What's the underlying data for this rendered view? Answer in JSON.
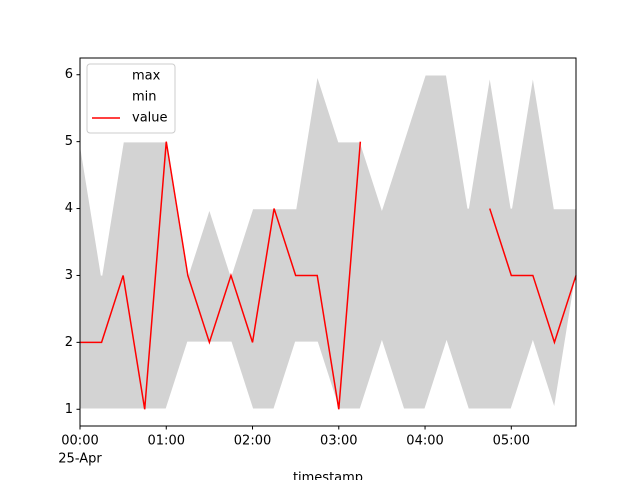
{
  "chart_data": {
    "type": "line_band",
    "x_label": "timestamp",
    "x_date_label": "25-Apr",
    "x": [
      "00:00",
      "00:15",
      "00:30",
      "00:45",
      "01:00",
      "01:15",
      "01:30",
      "01:45",
      "02:00",
      "02:15",
      "02:30",
      "02:45",
      "03:00",
      "03:15",
      "03:30",
      "03:45",
      "04:00",
      "04:15",
      "04:30",
      "04:45",
      "05:00",
      "05:15",
      "05:30",
      "05:45"
    ],
    "xlim": [
      "00:00",
      "05:45"
    ],
    "xticks": [
      "00:00",
      "01:00",
      "02:00",
      "03:00",
      "04:00",
      "05:00"
    ],
    "ylim": [
      0.75,
      6.25
    ],
    "yticks": [
      1,
      2,
      3,
      4,
      5,
      6
    ],
    "band_fill": "#d3d3d3",
    "legend": "upper left",
    "series": [
      {
        "name": "max",
        "color": "#ffffff",
        "values": [
          5,
          3,
          5,
          5,
          5,
          3,
          4,
          3,
          4,
          4,
          4,
          6,
          5,
          5,
          4,
          5,
          6,
          6,
          4,
          6,
          4,
          6,
          4,
          4
        ]
      },
      {
        "name": "min",
        "color": "#ffffff",
        "values": [
          1,
          1,
          1,
          1,
          1,
          2,
          2,
          2,
          1,
          1,
          2,
          2,
          1,
          1,
          2,
          1,
          1,
          2,
          1,
          1,
          1,
          2,
          1,
          3
        ]
      },
      {
        "name": "value",
        "color": "#ff0000",
        "values": [
          2,
          2,
          3,
          1,
          5,
          3,
          2,
          3,
          2,
          4,
          3,
          3,
          1,
          5,
          null,
          null,
          null,
          null,
          null,
          4,
          3,
          3,
          2,
          3
        ]
      }
    ]
  }
}
